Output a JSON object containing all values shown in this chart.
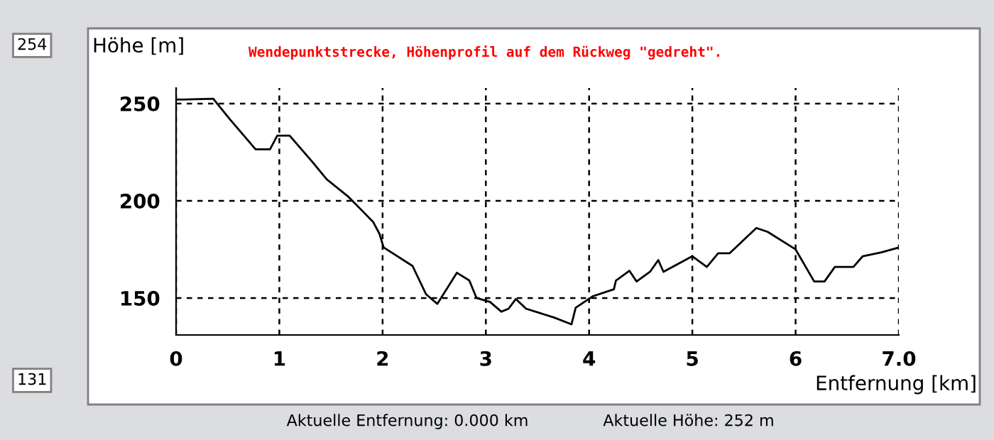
{
  "chart_data": {
    "type": "line",
    "title": "Wendepunktstrecke, Höhenprofil auf dem Rückweg \"gedreht\".",
    "xlabel": "Entfernung [km]",
    "ylabel": "Höhe [m]",
    "x": [
      0,
      0.36,
      0.52,
      0.77,
      0.91,
      0.98,
      1.1,
      1.32,
      1.46,
      1.67,
      1.8,
      1.91,
      1.97,
      2.01,
      2.29,
      2.42,
      2.53,
      2.72,
      2.84,
      2.91,
      3.04,
      3.15,
      3.22,
      3.29,
      3.39,
      3.66,
      3.83,
      3.87,
      4.04,
      4.24,
      4.26,
      4.39,
      4.46,
      4.59,
      4.67,
      4.72,
      5.0,
      5.14,
      5.25,
      5.36,
      5.62,
      5.73,
      6.0,
      6.18,
      6.28,
      6.38,
      6.56,
      6.65,
      6.83,
      7.0
    ],
    "series": [
      {
        "color": "#000000",
        "values": [
          252,
          252.5,
          242,
          226.5,
          226.5,
          233.5,
          233.5,
          220,
          211,
          202,
          195,
          189,
          183,
          176,
          166.5,
          152,
          147,
          163,
          159,
          150,
          148,
          143,
          144.5,
          149.5,
          144.5,
          140,
          136.5,
          145,
          151,
          154.5,
          159,
          164,
          158.5,
          163.5,
          169.5,
          163.5,
          171.5,
          166,
          173,
          173,
          186,
          184,
          175,
          158.5,
          158.5,
          166,
          166,
          171.5,
          173.5,
          176
        ]
      }
    ],
    "xlim": [
      0,
      7
    ],
    "xticks": [
      0,
      1,
      2,
      3,
      4,
      5,
      6,
      {
        "value": 7,
        "label": "7.0"
      }
    ],
    "ylim": [
      131,
      258
    ],
    "yticks": [
      150,
      200,
      250
    ],
    "grid": true,
    "legend": false,
    "marker": "none",
    "line_style": "solid",
    "annotations": [
      "254",
      "131",
      "Aktuelle Entfernung: 0.000 km",
      "Aktuelle Höhe: 252 m"
    ]
  }
}
